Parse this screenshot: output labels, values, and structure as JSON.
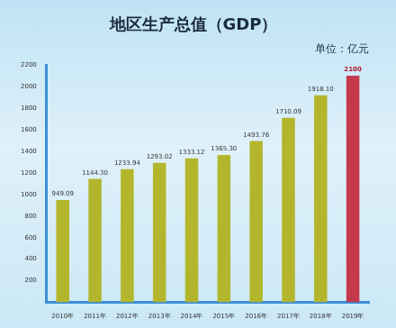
{
  "chart_data": {
    "type": "bar",
    "title": "地区生产总值（GDP）",
    "subtitle": "单位：亿元",
    "categories": [
      "2010年",
      "2011年",
      "2012年",
      "2013年",
      "2014年",
      "2015年",
      "2016年",
      "2017年",
      "2018年",
      "2019年"
    ],
    "values": [
      949.09,
      1144.3,
      1233.94,
      1293.02,
      1333.12,
      1365.3,
      1493.76,
      1710.09,
      1918.1,
      2100
    ],
    "value_labels": [
      "949.09",
      "1144.30",
      "1233.94",
      "1293.02",
      "1333.12",
      "1365.30",
      "1493.76",
      "1710.09",
      "1918.10",
      "2100"
    ],
    "colors": [
      "#b3b62c",
      "#b3b62c",
      "#b3b62c",
      "#b3b62c",
      "#b3b62c",
      "#b3b62c",
      "#b3b62c",
      "#b3b62c",
      "#b3b62c",
      "#c43a4c"
    ],
    "ylim": [
      0,
      2200
    ],
    "yticks": [
      200,
      400,
      600,
      800,
      1000,
      1200,
      1400,
      1600,
      1800,
      2000,
      2200
    ],
    "grid": false,
    "data_labels": true
  }
}
